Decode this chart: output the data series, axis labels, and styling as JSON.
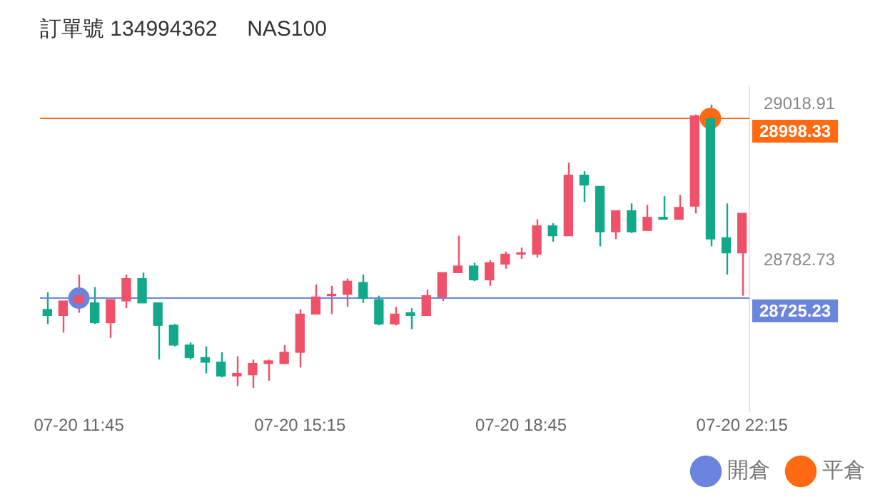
{
  "chart_data": {
    "type": "candlestick",
    "title": "訂單號 134994362     NAS100",
    "x": [
      "--07-20T11:15",
      "--07-20T11:30",
      "--07-20T11:45",
      "--07-20T12:00",
      "--07-20T12:15",
      "--07-20T12:30",
      "--07-20T12:45",
      "--07-20T13:00",
      "--07-20T13:15",
      "--07-20T13:30",
      "--07-20T13:45",
      "--07-20T14:00",
      "--07-20T14:15",
      "--07-20T14:30",
      "--07-20T14:45",
      "--07-20T15:00",
      "--07-20T15:15",
      "--07-20T15:30",
      "--07-20T15:45",
      "--07-20T16:00",
      "--07-20T16:15",
      "--07-20T16:30",
      "--07-20T16:45",
      "--07-20T17:00",
      "--07-20T17:15",
      "--07-20T17:30",
      "--07-20T17:45",
      "--07-20T18:00",
      "--07-20T18:15",
      "--07-20T18:30",
      "--07-20T18:45",
      "--07-20T19:00",
      "--07-20T19:15",
      "--07-20T19:30",
      "--07-20T19:45",
      "--07-20T20:00",
      "--07-20T20:15",
      "--07-20T20:30",
      "--07-20T20:45",
      "--07-20T21:00",
      "--07-20T21:15",
      "--07-20T21:30",
      "--07-20T21:45",
      "--07-20T22:00",
      "--07-20T22:15"
    ],
    "ohlc": [
      [
        28708,
        28734,
        28686,
        28699
      ],
      [
        28699,
        28721,
        28673,
        28721
      ],
      [
        28718,
        28761,
        28703,
        28729
      ],
      [
        28718,
        28742,
        28686,
        28688
      ],
      [
        28688,
        28723,
        28665,
        28723
      ],
      [
        28721,
        28761,
        28710,
        28755
      ],
      [
        28755,
        28764,
        28718,
        28718
      ],
      [
        28718,
        28718,
        28632,
        28684
      ],
      [
        28684,
        28686,
        28652,
        28654
      ],
      [
        28654,
        28658,
        28632,
        28635
      ],
      [
        28635,
        28652,
        28611,
        28628
      ],
      [
        28628,
        28643,
        28605,
        28607
      ],
      [
        28607,
        28637,
        28592,
        28611
      ],
      [
        28609,
        28632,
        28589,
        28626
      ],
      [
        28626,
        28632,
        28600,
        28630
      ],
      [
        28626,
        28654,
        28626,
        28643
      ],
      [
        28643,
        28708,
        28620,
        28701
      ],
      [
        28701,
        28746,
        28701,
        28727
      ],
      [
        28729,
        28744,
        28701,
        28731
      ],
      [
        28731,
        28755,
        28712,
        28751
      ],
      [
        28749,
        28761,
        28718,
        28725
      ],
      [
        28723,
        28729,
        28684,
        28686
      ],
      [
        28686,
        28712,
        28684,
        28701
      ],
      [
        28703,
        28710,
        28678,
        28699
      ],
      [
        28699,
        28738,
        28699,
        28729
      ],
      [
        28727,
        28764,
        28721,
        28764
      ],
      [
        28764,
        28820,
        28764,
        28774
      ],
      [
        28774,
        28779,
        28751,
        28753
      ],
      [
        28753,
        28783,
        28744,
        28779
      ],
      [
        28777,
        28796,
        28770,
        28792
      ],
      [
        28792,
        28802,
        28785,
        28794
      ],
      [
        28792,
        28845,
        28787,
        28835
      ],
      [
        28835,
        28839,
        28811,
        28820
      ],
      [
        28820,
        28931,
        28820,
        28912
      ],
      [
        28912,
        28918,
        28871,
        28897
      ],
      [
        28895,
        28895,
        28804,
        28826
      ],
      [
        28826,
        28858,
        28815,
        28858
      ],
      [
        28858,
        28869,
        28824,
        28826
      ],
      [
        28828,
        28867,
        28828,
        28848
      ],
      [
        28848,
        28880,
        28845,
        28845
      ],
      [
        28845,
        28882,
        28845,
        28863
      ],
      [
        28865,
        29004,
        28854,
        29002
      ],
      [
        28998,
        29019,
        28804,
        28815
      ],
      [
        28817,
        28869,
        28761,
        28794
      ],
      [
        28794,
        28854,
        28729,
        28854
      ]
    ],
    "colors": [
      "#12a98a",
      "#ef5268",
      "#ef5268",
      "#12a98a",
      "#ef5268",
      "#ef5268",
      "#12a98a",
      "#12a98a",
      "#12a98a",
      "#12a98a",
      "#12a98a",
      "#12a98a",
      "#ef5268",
      "#ef5268",
      "#ef5268",
      "#ef5268",
      "#ef5268",
      "#ef5268",
      "#ef5268",
      "#ef5268",
      "#12a98a",
      "#12a98a",
      "#ef5268",
      "#12a98a",
      "#ef5268",
      "#ef5268",
      "#ef5268",
      "#12a98a",
      "#ef5268",
      "#ef5268",
      "#ef5268",
      "#ef5268",
      "#12a98a",
      "#ef5268",
      "#12a98a",
      "#12a98a",
      "#ef5268",
      "#12a98a",
      "#ef5268",
      "#12a98a",
      "#ef5268",
      "#ef5268",
      "#12a98a",
      "#12a98a",
      "#ef5268"
    ],
    "series": [
      {
        "type": "scatter",
        "name": "開倉",
        "color": "#6b84de",
        "x": [
          "--07-20T11:45"
        ],
        "values": [
          28725.23
        ]
      },
      {
        "type": "scatter",
        "name": "平倉",
        "color": "#ff6a13",
        "x": [
          "--07-20T21:45"
        ],
        "values": [
          28998.33
        ]
      }
    ],
    "marker": "circle",
    "xlim": [
      "--07-20T11:08",
      "--07-20T22:22"
    ],
    "xticks": [
      {
        "value": "--07-20T11:45",
        "label": "07-20 11:45"
      },
      {
        "value": "--07-20T15:15",
        "label": "07-20 15:15"
      },
      {
        "value": "--07-20T18:45",
        "label": "07-20 18:45"
      },
      {
        "value": "--07-20T22:15",
        "label": "07-20 22:15"
      }
    ],
    "ylim": [
      28553,
      29048
    ],
    "yticks": [
      29018.91,
      28782.73
    ],
    "ref_lines": [
      {
        "axis": "y",
        "value": 28998.33,
        "label": "28998.33",
        "color": "#ff6a13"
      },
      {
        "axis": "y",
        "value": 28725.23,
        "label": "28725.23",
        "color": "#6b84de"
      }
    ],
    "legend": "bottom right"
  }
}
